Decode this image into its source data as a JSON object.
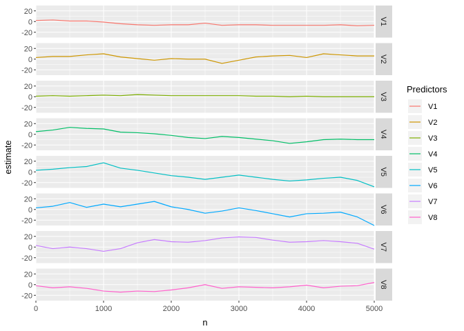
{
  "chart_data": {
    "type": "line",
    "layout": "facet_grid_rows",
    "xlabel": "n",
    "ylabel": "estimate",
    "xlim": [
      0,
      5000
    ],
    "ylim": [
      -30,
      30
    ],
    "x_ticks": [
      0,
      1000,
      2000,
      3000,
      4000,
      5000
    ],
    "y_ticks": [
      -20,
      0,
      20
    ],
    "x": [
      0,
      250,
      500,
      750,
      1000,
      1250,
      1500,
      1750,
      2000,
      2250,
      2500,
      2750,
      3000,
      3250,
      3500,
      3750,
      4000,
      4250,
      4500,
      4750,
      5000
    ],
    "grid": true,
    "legend": {
      "title": "Predictors",
      "position": "right"
    },
    "series": [
      {
        "name": "V1",
        "color": "#F8766D",
        "values": [
          2,
          3,
          1,
          1,
          -1,
          -4,
          -6,
          -7,
          -6,
          -6,
          -3,
          -7,
          -6,
          -6,
          -7,
          -7,
          -7,
          -7,
          -6,
          -8,
          -7
        ]
      },
      {
        "name": "V2",
        "color": "#CD9600",
        "values": [
          3,
          5,
          5,
          8,
          10,
          4,
          1,
          -2,
          1,
          0,
          0,
          -8,
          -2,
          4,
          6,
          7,
          3,
          10,
          8,
          6,
          6
        ]
      },
      {
        "name": "V3",
        "color": "#7CAE00",
        "values": [
          1,
          2,
          1,
          2,
          3,
          2,
          4,
          3,
          2,
          2,
          2,
          2,
          2,
          1,
          1,
          0,
          1,
          0,
          0,
          0,
          0
        ]
      },
      {
        "name": "V4",
        "color": "#00BE67",
        "values": [
          5,
          8,
          13,
          11,
          10,
          4,
          3,
          1,
          -2,
          -6,
          -8,
          -4,
          -6,
          -9,
          -12,
          -17,
          -14,
          -10,
          -9,
          -10,
          -10
        ]
      },
      {
        "name": "V5",
        "color": "#00BFC4",
        "values": [
          3,
          5,
          8,
          10,
          17,
          7,
          3,
          -2,
          -7,
          -10,
          -14,
          -10,
          -6,
          -10,
          -14,
          -17,
          -15,
          -12,
          -10,
          -16,
          -28
        ]
      },
      {
        "name": "V6",
        "color": "#00A9FF",
        "values": [
          3,
          6,
          13,
          4,
          10,
          5,
          10,
          15,
          5,
          0,
          -7,
          -3,
          3,
          -2,
          -8,
          -14,
          -8,
          -7,
          -5,
          -14,
          -30
        ]
      },
      {
        "name": "V7",
        "color": "#C77CFF",
        "values": [
          3,
          -3,
          0,
          -3,
          -8,
          -3,
          8,
          14,
          10,
          9,
          12,
          17,
          19,
          18,
          13,
          9,
          10,
          12,
          10,
          7,
          -4
        ]
      },
      {
        "name": "V8",
        "color": "#FF61CC",
        "values": [
          -2,
          -6,
          -4,
          -7,
          -12,
          -14,
          -12,
          -13,
          -10,
          -6,
          0,
          -7,
          -4,
          -5,
          -6,
          -4,
          -1,
          -6,
          -3,
          -2,
          4
        ]
      }
    ]
  }
}
